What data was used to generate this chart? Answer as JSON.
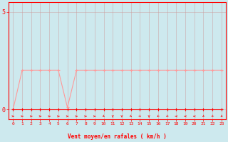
{
  "x": [
    0,
    1,
    2,
    3,
    4,
    5,
    6,
    7,
    8,
    9,
    10,
    11,
    12,
    13,
    14,
    15,
    16,
    17,
    18,
    19,
    20,
    21,
    22,
    23
  ],
  "y_moyen": [
    0,
    0,
    0,
    0,
    0,
    0,
    0,
    0,
    0,
    0,
    0,
    0,
    0,
    0,
    0,
    0,
    0,
    0,
    0,
    0,
    0,
    0,
    0,
    0
  ],
  "y_rafales": [
    0,
    2,
    2,
    2,
    2,
    2,
    0.1,
    2,
    2,
    2,
    2,
    2,
    2,
    2,
    2,
    2,
    2,
    2,
    2,
    2,
    2,
    2,
    2,
    2
  ],
  "bg_color": "#cde9ee",
  "grid_color": "#aaaaaa",
  "line_color_moyen": "#ff0000",
  "line_color_rafales": "#ff9999",
  "xlabel": "Vent moyen/en rafales ( km/h )",
  "ylabel": "",
  "xlim": [
    -0.5,
    23.5
  ],
  "ylim": [
    -0.5,
    5.5
  ],
  "yticks": [
    0,
    5
  ],
  "xticks": [
    0,
    1,
    2,
    3,
    4,
    5,
    6,
    7,
    8,
    9,
    10,
    11,
    12,
    13,
    14,
    15,
    16,
    17,
    18,
    19,
    20,
    21,
    22,
    23
  ],
  "xlabel_color": "#ff0000",
  "tick_color": "#ff0000",
  "spine_color": "#ff0000",
  "marker_size": 2.5,
  "linewidth": 0.8
}
